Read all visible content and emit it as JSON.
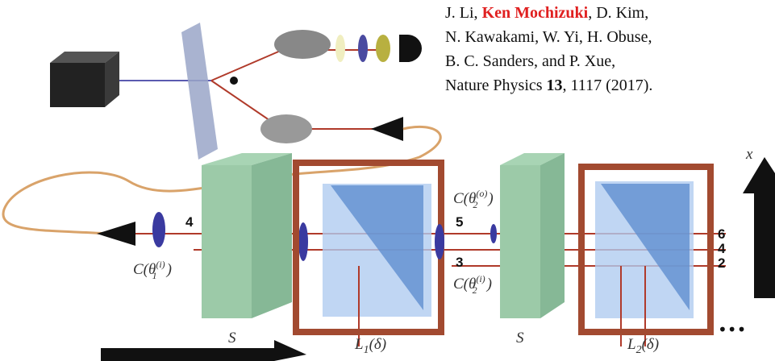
{
  "citation": {
    "line1": [
      "J. Li, ",
      "Ken Mochizuki",
      ", D. Kim,"
    ],
    "line2": "N. Kawakami, W. Yi, H. Obuse,",
    "line3": "B. C. Sanders, and P. Xue,",
    "line4": [
      "Nature Physics ",
      "13",
      ", 1117 (2017)."
    ]
  },
  "ports": {
    "input": "4",
    "upper_out": "5",
    "lower_out": "3",
    "right_top": "6",
    "right_mid": "4",
    "right_bottom": "2"
  },
  "coins": {
    "c1": {
      "base": "C(θ",
      "sub": "1",
      "sup": "(i)",
      "close": ")"
    },
    "c2o": {
      "base": "C(θ",
      "sub": "2",
      "sup": "(o)",
      "close": ")"
    },
    "c2i": {
      "base": "C(θ",
      "sub": "2",
      "sup": "(i)",
      "close": ")"
    }
  },
  "elements": {
    "s1": "S",
    "s2": "S",
    "l1": {
      "base": "L",
      "sub": "1",
      "arg": "(δ)"
    },
    "l2": {
      "base": "L",
      "sub": "2",
      "arg": "(δ)"
    },
    "axis": "x",
    "ellipsis": "•••"
  }
}
